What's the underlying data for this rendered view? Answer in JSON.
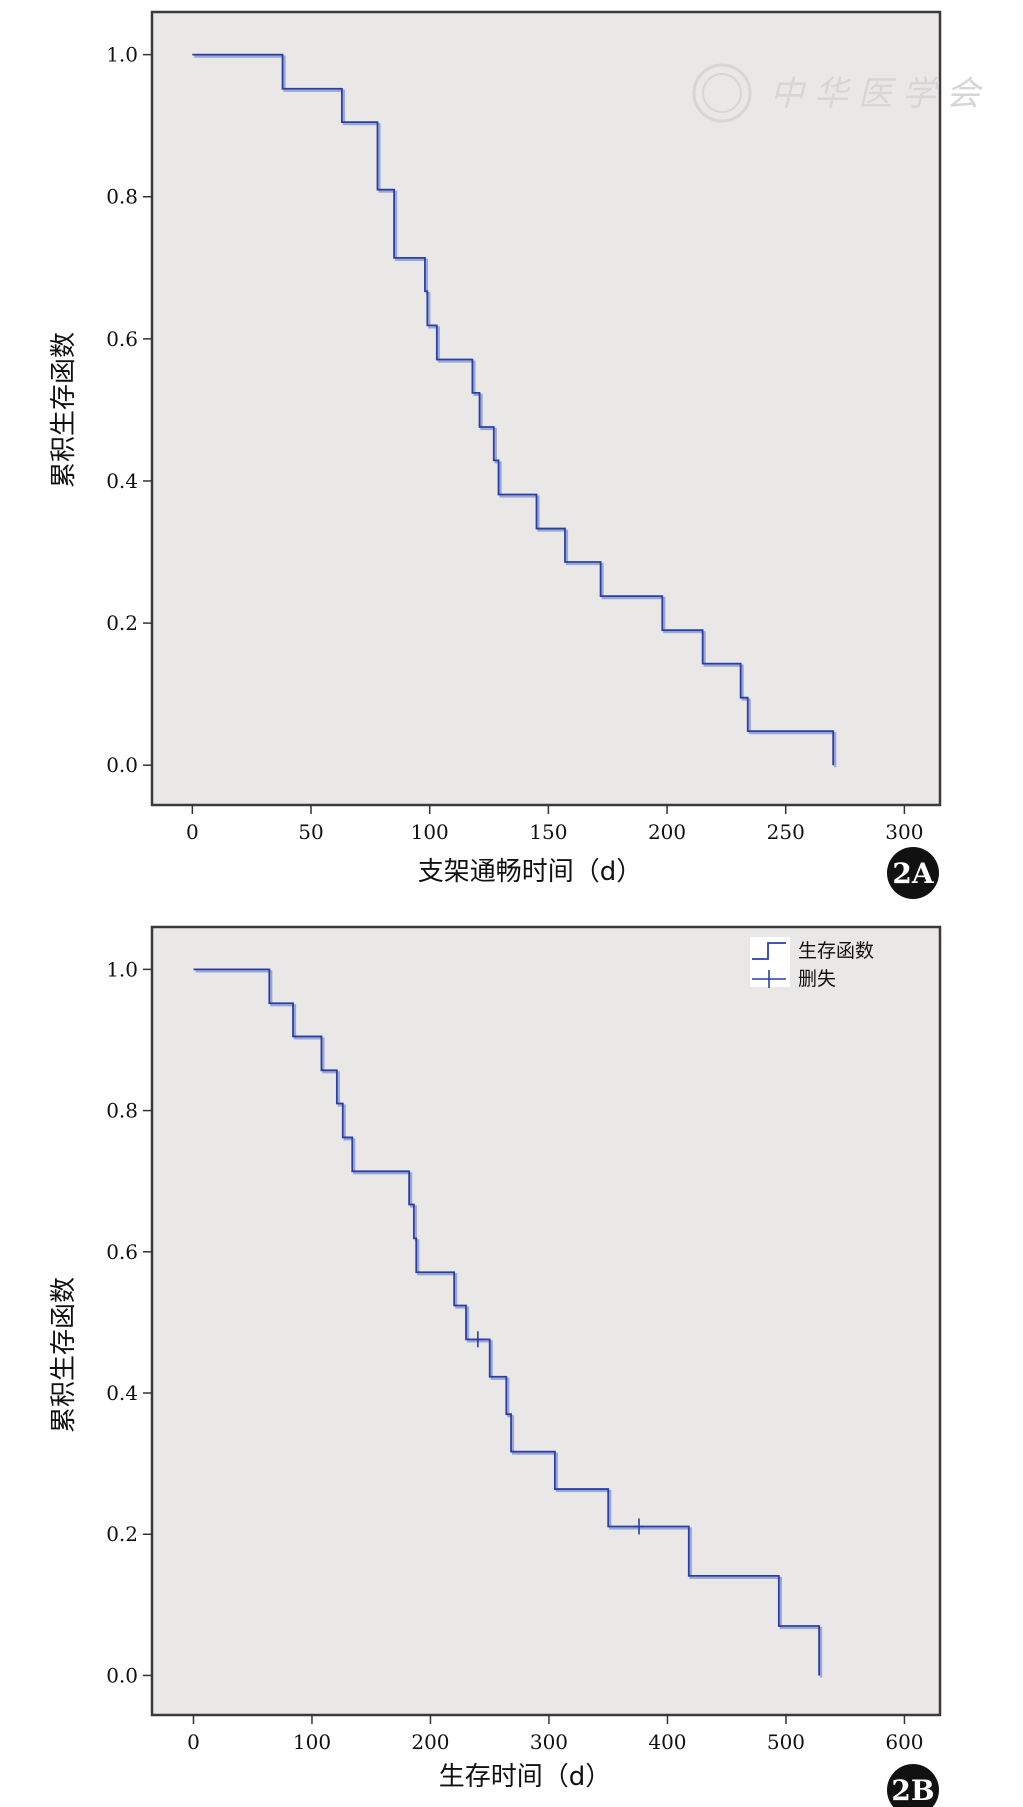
{
  "watermark": "中华医学会",
  "chart_data": [
    {
      "type": "line",
      "step": "km",
      "panel_label": "2A",
      "xlabel": "支架通畅时间（d）",
      "ylabel": "累积生存函数",
      "xlim": [
        -17,
        315
      ],
      "ylim": [
        -0.056,
        1.06
      ],
      "xticks": [
        0,
        50,
        100,
        150,
        200,
        250,
        300
      ],
      "yticks": [
        0.0,
        0.2,
        0.4,
        0.6,
        0.8,
        1.0
      ],
      "grid": false,
      "legend": null,
      "colors": {
        "plot_bg": "#eae8e7",
        "line": "#2a3fa6",
        "shadow": "#9aa7d6"
      },
      "series": [
        {
          "steps": [
            [
              0,
              1.0
            ],
            [
              38,
              0.952
            ],
            [
              63,
              0.905
            ],
            [
              78,
              0.81
            ],
            [
              85,
              0.714
            ],
            [
              98,
              0.667
            ],
            [
              99,
              0.619
            ],
            [
              103,
              0.571
            ],
            [
              118,
              0.524
            ],
            [
              121,
              0.476
            ],
            [
              127,
              0.429
            ],
            [
              129,
              0.381
            ],
            [
              145,
              0.333
            ],
            [
              157,
              0.286
            ],
            [
              172,
              0.238
            ],
            [
              198,
              0.19
            ],
            [
              215,
              0.143
            ],
            [
              231,
              0.095
            ],
            [
              234,
              0.048
            ],
            [
              270,
              0.0
            ]
          ],
          "censored": []
        }
      ]
    },
    {
      "type": "line",
      "step": "km",
      "panel_label": "2B",
      "xlabel": "生存时间（d）",
      "ylabel": "累积生存函数",
      "xlim": [
        -35,
        630
      ],
      "ylim": [
        -0.056,
        1.06
      ],
      "xticks": [
        0,
        100,
        200,
        300,
        400,
        500,
        600
      ],
      "yticks": [
        0.0,
        0.2,
        0.4,
        0.6,
        0.8,
        1.0
      ],
      "grid": false,
      "legend": {
        "position": "top-right",
        "items": [
          "生存函数",
          "删失"
        ]
      },
      "colors": {
        "plot_bg": "#eae8e7",
        "line": "#2a3fa6",
        "shadow": "#9aa7d6"
      },
      "series": [
        {
          "steps": [
            [
              0,
              1.0
            ],
            [
              64,
              0.952
            ],
            [
              84,
              0.905
            ],
            [
              108,
              0.857
            ],
            [
              121,
              0.81
            ],
            [
              126,
              0.762
            ],
            [
              134,
              0.714
            ],
            [
              182,
              0.667
            ],
            [
              186,
              0.619
            ],
            [
              188,
              0.571
            ],
            [
              220,
              0.524
            ],
            [
              230,
              0.476
            ],
            [
              250,
              0.423
            ],
            [
              264,
              0.37
            ],
            [
              268,
              0.317
            ],
            [
              305,
              0.264
            ],
            [
              350,
              0.211
            ],
            [
              418,
              0.141
            ],
            [
              494,
              0.07
            ],
            [
              528,
              0.0
            ]
          ],
          "censored": [
            [
              240,
              0.476
            ],
            [
              376,
              0.211
            ]
          ]
        }
      ]
    }
  ]
}
